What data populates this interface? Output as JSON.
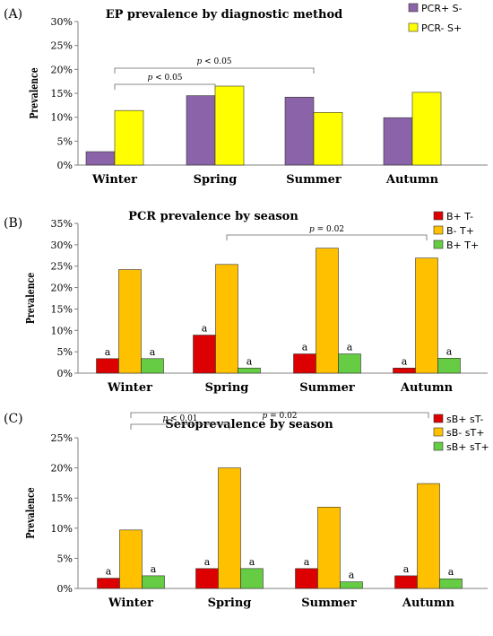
{
  "chart_data": [
    {
      "panel_label": "(A)",
      "type": "bar",
      "title": "EP prevalence by diagnostic method",
      "ylabel": "Prevalence",
      "ylim": [
        0,
        30
      ],
      "yticks": [
        "0%",
        "5%",
        "10%",
        "15%",
        "20%",
        "25%",
        "30%"
      ],
      "categories": [
        "Winter",
        "Spring",
        "Summer",
        "Autumn"
      ],
      "legend_position": "top-right",
      "grid": false,
      "series": [
        {
          "name": "PCR+ S-",
          "color": "#8a63a8",
          "values": [
            2.8,
            14.5,
            14.2,
            9.9
          ]
        },
        {
          "name": "PCR- S+",
          "color": "#ffff00",
          "values": [
            11.4,
            16.5,
            11.0,
            15.2
          ]
        }
      ],
      "annotations": [
        {
          "text": "p < 0.05",
          "from": 0,
          "to": 1
        },
        {
          "text": "p < 0.05",
          "from": 0,
          "to": 2
        }
      ]
    },
    {
      "panel_label": "(B)",
      "type": "bar",
      "title": "PCR prevalence by season",
      "ylabel": "Prevalence",
      "ylim": [
        0,
        35
      ],
      "yticks": [
        "0%",
        "5%",
        "10%",
        "15%",
        "20%",
        "25%",
        "30%",
        "35%"
      ],
      "categories": [
        "Winter",
        "Spring",
        "Summer",
        "Autumn"
      ],
      "legend_position": "top-right",
      "grid": false,
      "series": [
        {
          "name": "B+ T-",
          "color": "#dd0000",
          "values": [
            3.4,
            8.9,
            4.5,
            1.2
          ],
          "bar_labels": [
            "a",
            "a",
            "a",
            "a"
          ]
        },
        {
          "name": "B- T+",
          "color": "#ffc000",
          "values": [
            24.2,
            25.4,
            29.2,
            26.9
          ]
        },
        {
          "name": "B+ T+",
          "color": "#66cc44",
          "values": [
            3.4,
            1.2,
            4.5,
            3.5
          ],
          "bar_labels": [
            "a",
            "a",
            "a",
            "a"
          ]
        }
      ],
      "annotations": [
        {
          "text": "p = 0.02",
          "from": 1,
          "to": 3
        }
      ]
    },
    {
      "panel_label": "(C)",
      "type": "bar",
      "title": "Seroprevalence by season",
      "ylabel": "Prevalence",
      "ylim": [
        0,
        25
      ],
      "yticks": [
        "0%",
        "5%",
        "10%",
        "15%",
        "20%",
        "25%"
      ],
      "categories": [
        "Winter",
        "Spring",
        "Summer",
        "Autumn"
      ],
      "legend_position": "top-right",
      "grid": false,
      "series": [
        {
          "name": "sB+ sT-",
          "color": "#dd0000",
          "values": [
            1.7,
            3.3,
            3.3,
            2.1
          ],
          "bar_labels": [
            "a",
            "a",
            "a",
            "a"
          ]
        },
        {
          "name": "sB- sT+",
          "color": "#ffc000",
          "values": [
            9.7,
            20.0,
            13.5,
            17.4
          ]
        },
        {
          "name": "sB+ sT+",
          "color": "#66cc44",
          "values": [
            2.1,
            3.3,
            1.1,
            1.6
          ],
          "bar_labels": [
            "a",
            "a",
            "a",
            "a"
          ]
        }
      ],
      "annotations": [
        {
          "text": "p < 0.01",
          "from": 0,
          "to": 1
        },
        {
          "text": "p = 0.02",
          "from": 0,
          "to": 3
        }
      ]
    }
  ]
}
